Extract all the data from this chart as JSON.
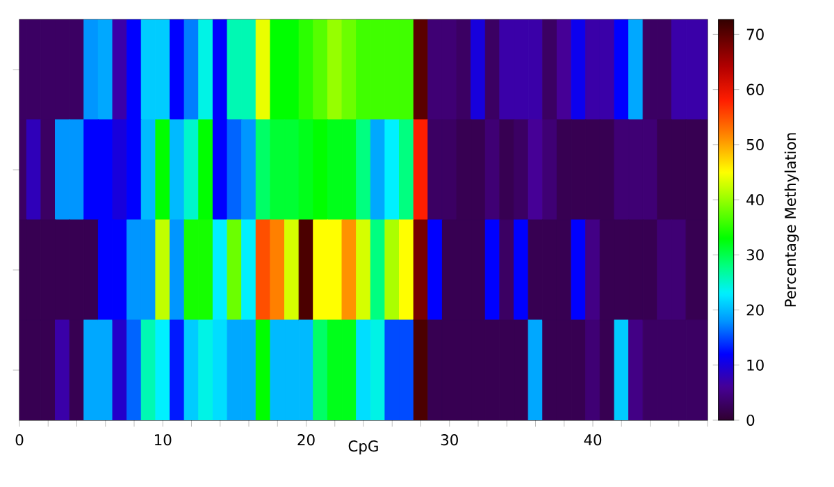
{
  "chart_data": {
    "type": "heatmap",
    "xlabel": "CpG",
    "clabel": "Percentage Methylation",
    "categories": [
      "0",
      null,
      null,
      null,
      null,
      null,
      null,
      null,
      null,
      null,
      "10",
      null,
      null,
      null,
      null,
      null,
      null,
      null,
      null,
      null,
      "20",
      null,
      null,
      null,
      null,
      null,
      null,
      null,
      null,
      null,
      "30",
      null,
      null,
      null,
      null,
      null,
      null,
      null,
      null,
      null,
      "40",
      null,
      null,
      null,
      null,
      null,
      null,
      null,
      null
    ],
    "y_categories": [
      null,
      null,
      null,
      null
    ],
    "cells": [
      [
        3,
        3,
        3,
        3,
        3,
        18,
        19,
        7,
        12,
        21,
        21,
        12,
        17,
        24,
        12,
        26,
        26,
        44,
        33,
        33,
        35,
        37,
        40,
        38,
        36,
        36,
        36,
        36,
        70,
        4,
        4,
        3,
        10,
        3,
        7,
        7,
        7,
        3,
        6,
        11,
        7,
        7,
        12,
        19,
        3,
        3,
        7,
        7,
        7
      ],
      [
        3,
        8,
        3,
        18,
        18,
        12,
        12,
        10,
        12,
        20,
        33,
        20,
        25,
        33,
        12,
        16,
        18,
        29,
        31,
        31,
        32,
        33,
        32,
        32,
        28,
        19,
        23,
        28,
        58,
        3,
        3,
        2,
        2,
        4,
        2,
        3,
        6,
        4,
        2,
        2,
        2,
        2,
        4,
        4,
        4,
        2,
        2,
        2,
        2
      ],
      [
        2,
        2,
        2,
        2,
        2,
        2,
        12,
        12,
        18,
        18,
        42,
        18,
        34,
        34,
        23,
        38,
        23,
        55,
        52,
        43,
        71,
        45,
        45,
        51,
        43,
        28,
        41,
        45,
        68,
        12,
        2,
        2,
        2,
        12,
        3,
        12,
        2,
        2,
        2,
        12,
        5,
        2,
        2,
        2,
        2,
        4,
        4,
        2,
        2
      ],
      [
        2,
        2,
        2,
        7,
        2,
        19,
        19,
        9,
        16,
        26,
        23,
        13,
        21,
        24,
        22,
        19,
        19,
        33,
        20,
        20,
        20,
        29,
        32,
        32,
        22,
        24,
        15,
        15,
        71,
        2,
        2,
        2,
        2,
        2,
        2,
        2,
        19,
        2,
        2,
        2,
        4,
        2,
        21,
        5,
        3,
        3,
        3,
        3,
        3
      ]
    ],
    "clim": [
      0,
      72.7
    ],
    "cticks": [
      0,
      10,
      20,
      30,
      40,
      50,
      60,
      70
    ],
    "tick_labels": "x"
  }
}
